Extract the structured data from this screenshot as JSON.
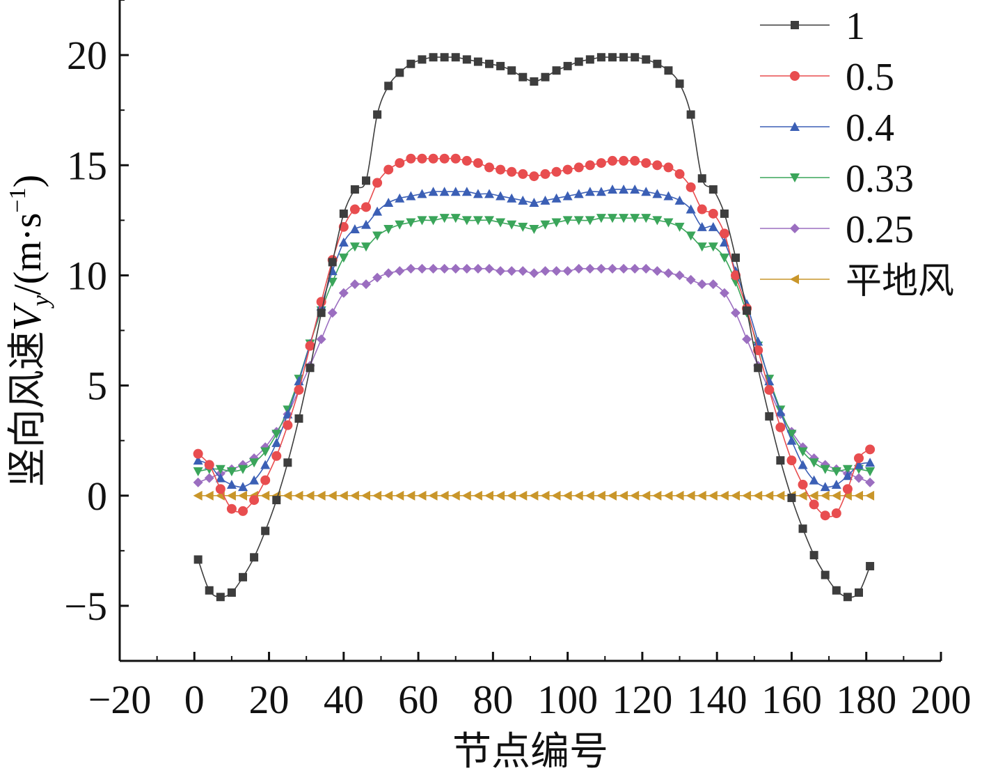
{
  "chart_data": {
    "type": "line",
    "xlabel": "节点编号",
    "ylabel_prefix": "竖向风速",
    "ylabel_var": "V",
    "ylabel_sub": "y",
    "ylabel_unit": "/(m·s",
    "ylabel_sup": "−1",
    "ylabel_close": ")",
    "xlim": [
      -20,
      200
    ],
    "ylim": [
      -7.5,
      22.5
    ],
    "xticks": [
      "−20",
      "0",
      "20",
      "40",
      "60",
      "80",
      "100",
      "120",
      "140",
      "160",
      "180",
      "200"
    ],
    "yticks": [
      "−5",
      "0",
      "5",
      "10",
      "15",
      "20"
    ],
    "legend_position": "top-right",
    "x": [
      1,
      4,
      7,
      10,
      13,
      16,
      19,
      22,
      25,
      28,
      31,
      34,
      37,
      40,
      43,
      46,
      49,
      52,
      55,
      58,
      61,
      64,
      67,
      70,
      73,
      76,
      79,
      82,
      85,
      88,
      91,
      94,
      97,
      100,
      103,
      106,
      109,
      112,
      115,
      118,
      121,
      124,
      127,
      130,
      133,
      136,
      139,
      142,
      145,
      148,
      151,
      154,
      157,
      160,
      163,
      166,
      169,
      172,
      175,
      178,
      181
    ],
    "series": [
      {
        "name": "1",
        "color": "#3d3d3d",
        "marker": "square",
        "values": [
          -2.9,
          -4.3,
          -4.6,
          -4.4,
          -3.7,
          -2.8,
          -1.6,
          -0.2,
          1.5,
          3.5,
          5.8,
          8.3,
          10.6,
          12.8,
          13.9,
          14.3,
          17.3,
          18.6,
          19.2,
          19.6,
          19.8,
          19.9,
          19.9,
          19.9,
          19.8,
          19.7,
          19.6,
          19.5,
          19.3,
          19.0,
          18.8,
          19.0,
          19.3,
          19.5,
          19.7,
          19.8,
          19.9,
          19.9,
          19.9,
          19.9,
          19.8,
          19.6,
          19.3,
          18.7,
          17.3,
          14.4,
          13.9,
          12.8,
          10.8,
          8.4,
          5.8,
          3.6,
          1.6,
          -0.1,
          -1.5,
          -2.7,
          -3.6,
          -4.3,
          -4.6,
          -4.4,
          -3.2
        ]
      },
      {
        "name": "0.5",
        "color": "#e84d4f",
        "marker": "circle",
        "values": [
          1.9,
          1.4,
          0.3,
          -0.6,
          -0.7,
          -0.2,
          0.7,
          1.8,
          3.2,
          4.8,
          6.8,
          8.8,
          10.7,
          12.2,
          13.0,
          13.1,
          14.2,
          14.8,
          15.1,
          15.3,
          15.3,
          15.3,
          15.3,
          15.3,
          15.2,
          15.1,
          14.9,
          14.8,
          14.7,
          14.6,
          14.5,
          14.6,
          14.7,
          14.8,
          14.9,
          15.0,
          15.1,
          15.2,
          15.2,
          15.2,
          15.1,
          15.0,
          14.9,
          14.6,
          14.0,
          13.0,
          12.8,
          11.9,
          10.0,
          8.5,
          6.6,
          4.8,
          3.1,
          1.6,
          0.5,
          -0.4,
          -0.9,
          -0.8,
          0.3,
          1.7,
          2.1
        ]
      },
      {
        "name": "0.4",
        "color": "#3b5fb5",
        "marker": "triangle-up",
        "values": [
          1.6,
          1.4,
          0.8,
          0.5,
          0.4,
          0.7,
          1.4,
          2.4,
          3.7,
          5.2,
          6.9,
          8.6,
          10.2,
          11.5,
          12.1,
          12.3,
          12.9,
          13.3,
          13.5,
          13.6,
          13.7,
          13.8,
          13.8,
          13.8,
          13.8,
          13.7,
          13.7,
          13.6,
          13.5,
          13.4,
          13.3,
          13.4,
          13.5,
          13.6,
          13.7,
          13.8,
          13.8,
          13.9,
          13.9,
          13.9,
          13.8,
          13.7,
          13.6,
          13.4,
          13.0,
          12.2,
          12.2,
          11.5,
          10.2,
          8.7,
          7.0,
          5.2,
          3.8,
          2.5,
          1.4,
          0.7,
          0.4,
          0.5,
          0.9,
          1.4,
          1.5
        ]
      },
      {
        "name": "0.33",
        "color": "#3aa55a",
        "marker": "triangle-down",
        "values": [
          1.1,
          1.2,
          1.2,
          1.1,
          1.2,
          1.5,
          2.0,
          2.8,
          3.9,
          5.3,
          6.9,
          8.4,
          9.7,
          10.8,
          11.3,
          11.3,
          11.8,
          12.1,
          12.3,
          12.4,
          12.5,
          12.5,
          12.6,
          12.6,
          12.5,
          12.5,
          12.5,
          12.4,
          12.3,
          12.2,
          12.1,
          12.3,
          12.4,
          12.5,
          12.5,
          12.5,
          12.6,
          12.6,
          12.6,
          12.6,
          12.6,
          12.5,
          12.4,
          12.2,
          11.8,
          11.3,
          11.3,
          10.8,
          9.7,
          8.3,
          6.8,
          5.3,
          3.9,
          2.8,
          2.0,
          1.5,
          1.2,
          1.1,
          1.2,
          1.2,
          1.1
        ]
      },
      {
        "name": "0.25",
        "color": "#9b6ec0",
        "marker": "diamond",
        "values": [
          0.6,
          0.8,
          1.0,
          1.2,
          1.4,
          1.7,
          2.2,
          2.9,
          3.7,
          4.8,
          5.9,
          7.1,
          8.3,
          9.2,
          9.6,
          9.6,
          9.9,
          10.1,
          10.2,
          10.3,
          10.3,
          10.3,
          10.3,
          10.3,
          10.3,
          10.3,
          10.3,
          10.2,
          10.2,
          10.2,
          10.1,
          10.2,
          10.2,
          10.2,
          10.3,
          10.3,
          10.3,
          10.3,
          10.3,
          10.3,
          10.3,
          10.2,
          10.1,
          10.0,
          9.8,
          9.6,
          9.6,
          9.2,
          8.3,
          7.1,
          5.9,
          4.8,
          3.7,
          2.9,
          2.2,
          1.7,
          1.4,
          1.2,
          1.0,
          0.8,
          0.6
        ]
      },
      {
        "name": "平地风",
        "color": "#c9962a",
        "marker": "triangle-left",
        "values": [
          0,
          0,
          0,
          0,
          0,
          0,
          0,
          0,
          0,
          0,
          0,
          0,
          0,
          0,
          0,
          0,
          0,
          0,
          0,
          0,
          0,
          0,
          0,
          0,
          0,
          0,
          0,
          0,
          0,
          0,
          0,
          0,
          0,
          0,
          0,
          0,
          0,
          0,
          0,
          0,
          0,
          0,
          0,
          0,
          0,
          0,
          0,
          0,
          0,
          0,
          0,
          0,
          0,
          0,
          0,
          0,
          0,
          0,
          0,
          0,
          0
        ]
      }
    ]
  }
}
